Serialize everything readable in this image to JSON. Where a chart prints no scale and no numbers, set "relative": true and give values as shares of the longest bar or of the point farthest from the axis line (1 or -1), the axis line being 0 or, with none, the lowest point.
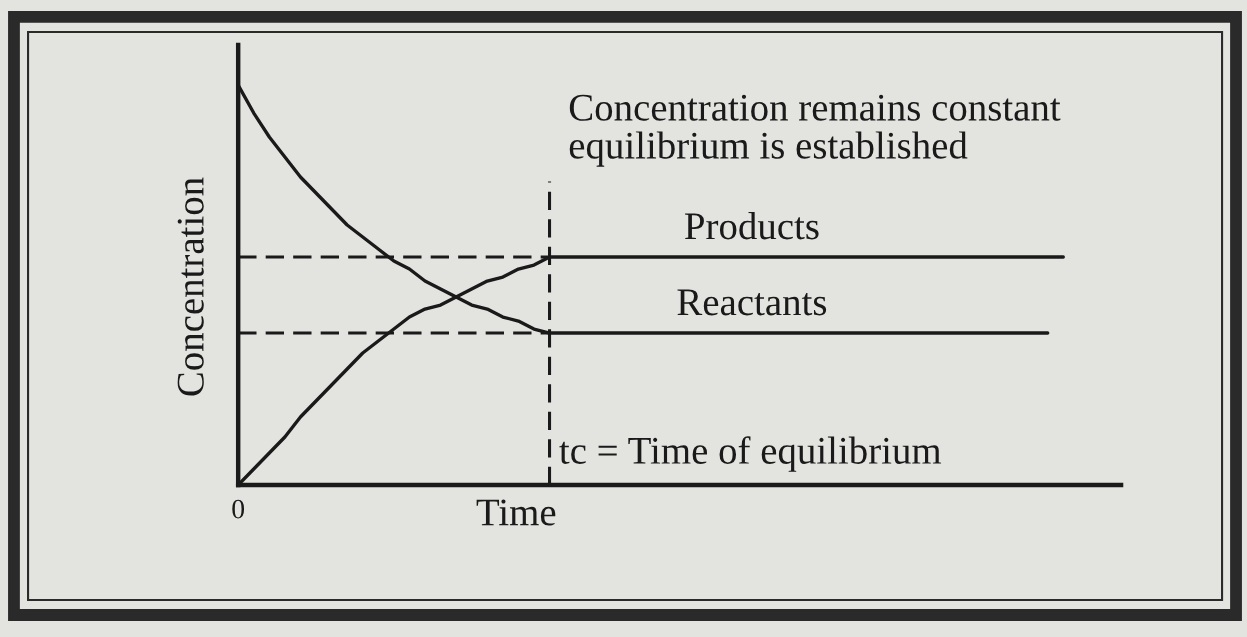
{
  "chart_data": {
    "type": "line",
    "relative": true,
    "xlabel": "Time",
    "ylabel": "Concentration",
    "line_style": "solid",
    "categories": [
      null,
      null,
      null,
      null,
      null,
      null,
      null,
      null,
      null,
      null,
      null,
      null,
      null,
      null,
      null,
      null,
      null,
      null,
      null,
      null,
      null,
      null,
      null,
      null,
      null,
      null,
      null,
      null,
      null,
      null,
      null,
      null,
      null,
      null,
      null,
      null,
      null,
      null,
      null,
      null,
      null,
      null,
      null,
      null,
      null,
      null,
      null,
      null,
      null,
      null,
      null,
      null,
      null,
      null
    ],
    "series": [
      {
        "name": "Reactants",
        "color": "#1a1a1a",
        "values": [
          1,
          0.93,
          0.87,
          0.82,
          0.77,
          0.73,
          0.69,
          0.65,
          0.62,
          0.59,
          0.56,
          0.54,
          0.51,
          0.49,
          0.47,
          0.45,
          0.44,
          0.42,
          0.41,
          0.39,
          0.38,
          0.38,
          0.38,
          0.38,
          0.38,
          0.38,
          0.38,
          0.38,
          0.38,
          0.38,
          0.38,
          0.38,
          0.38,
          0.38,
          0.38,
          0.38,
          0.38,
          0.38,
          0.38,
          0.38,
          0.38,
          0.38,
          0.38,
          0.38,
          0.38,
          0.38,
          0.38,
          0.38,
          0.38,
          0.38,
          0.38,
          0.38,
          0.38,
          null
        ]
      },
      {
        "name": "Products",
        "color": "#1a1a1a",
        "values": [
          0,
          0.04,
          0.08,
          0.12,
          0.17,
          0.21,
          0.25,
          0.29,
          0.33,
          0.36,
          0.39,
          0.42,
          0.44,
          0.45,
          0.47,
          0.49,
          0.51,
          0.52,
          0.54,
          0.55,
          0.57,
          0.57,
          0.57,
          0.57,
          0.57,
          0.57,
          0.57,
          0.57,
          0.57,
          0.57,
          0.57,
          0.57,
          0.57,
          0.57,
          0.57,
          0.57,
          0.57,
          0.57,
          0.57,
          0.57,
          0.57,
          0.57,
          0.57,
          0.57,
          0.57,
          0.57,
          0.57,
          0.57,
          0.57,
          0.57,
          0.57,
          0.57,
          0.57,
          0.57
        ]
      }
    ],
    "ref_lines": [
      {
        "axis": "y",
        "value": 0.57,
        "line_style": "dashed",
        "color": "#1a1a1a"
      },
      {
        "axis": "y",
        "value": 0.38,
        "line_style": "dashed",
        "color": "#1a1a1a"
      }
    ],
    "annotations": [
      "Concentration remains constant\nequilibrium is established",
      "tc = Time of equilibrium",
      {
        "text": "0",
        "y": 0
      }
    ]
  }
}
